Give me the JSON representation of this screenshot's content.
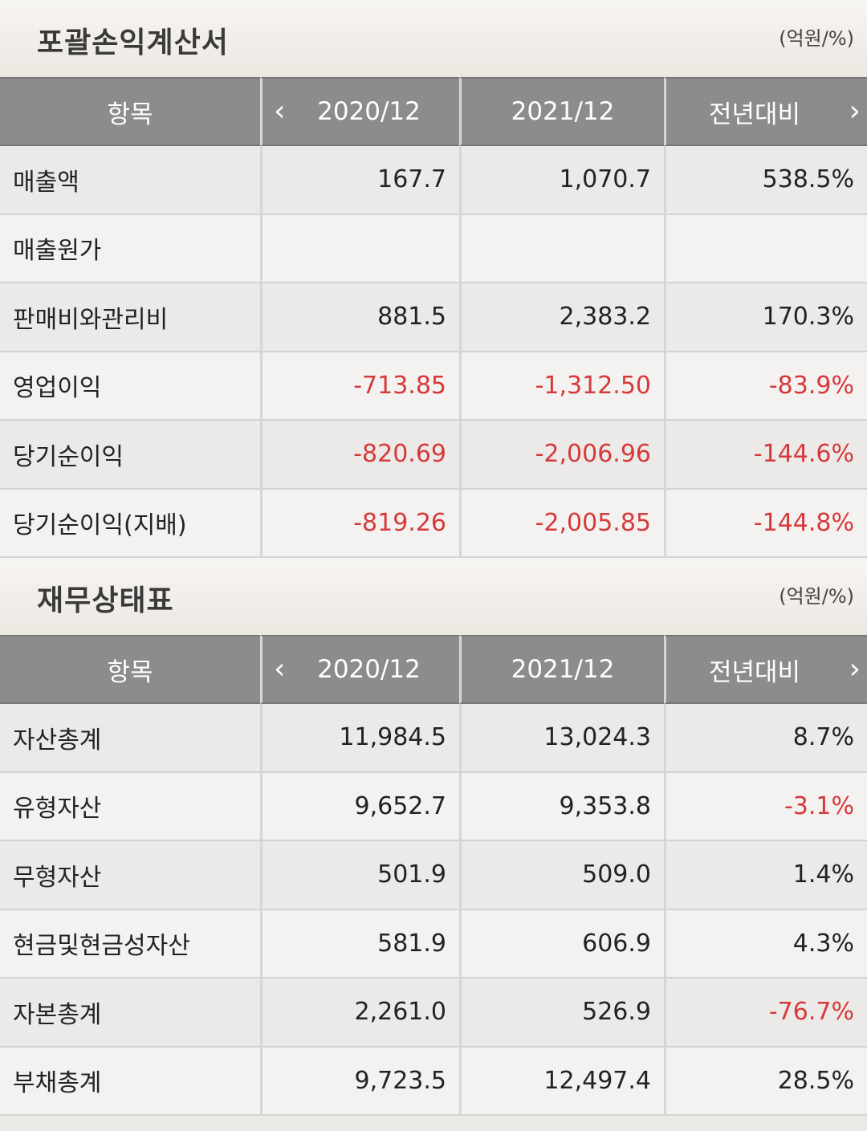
{
  "income": {
    "title": "포괄손익계산서",
    "unit": "(억원/%)",
    "headers": [
      "항목",
      "2020/12",
      "2021/12",
      "전년대비"
    ],
    "rows": [
      {
        "label": "매출액",
        "v1": "167.7",
        "v2": "1,070.7",
        "yoy": "538.5%"
      },
      {
        "label": "매출원가",
        "v1": "",
        "v2": "",
        "yoy": ""
      },
      {
        "label": "판매비와관리비",
        "v1": "881.5",
        "v2": "2,383.2",
        "yoy": "170.3%"
      },
      {
        "label": "영업이익",
        "v1": "-713.85",
        "v2": "-1,312.50",
        "yoy": "-83.9%"
      },
      {
        "label": "당기순이익",
        "v1": "-820.69",
        "v2": "-2,006.96",
        "yoy": "-144.6%"
      },
      {
        "label": "당기순이익(지배)",
        "v1": "-819.26",
        "v2": "-2,005.85",
        "yoy": "-144.8%"
      }
    ]
  },
  "balance": {
    "title": "재무상태표",
    "unit": "(억원/%)",
    "headers": [
      "항목",
      "2020/12",
      "2021/12",
      "전년대비"
    ],
    "rows": [
      {
        "label": "자산총계",
        "v1": "11,984.5",
        "v2": "13,024.3",
        "yoy": "8.7%"
      },
      {
        "label": "유형자산",
        "v1": "9,652.7",
        "v2": "9,353.8",
        "yoy": "-3.1%"
      },
      {
        "label": "무형자산",
        "v1": "501.9",
        "v2": "509.0",
        "yoy": "1.4%"
      },
      {
        "label": "현금및현금성자산",
        "v1": "581.9",
        "v2": "606.9",
        "yoy": "4.3%"
      },
      {
        "label": "자본총계",
        "v1": "2,261.0",
        "v2": "526.9",
        "yoy": "-76.7%"
      },
      {
        "label": "부채총계",
        "v1": "9,723.5",
        "v2": "12,497.4",
        "yoy": "28.5%"
      }
    ]
  },
  "icons": {
    "prev": "chevron-left-icon",
    "next": "chevron-right-icon"
  },
  "colors": {
    "header_bg": "#8c8c8c",
    "negative": "#d6393a",
    "row_odd": "#ebeae8",
    "row_even": "#f3f2f0"
  }
}
